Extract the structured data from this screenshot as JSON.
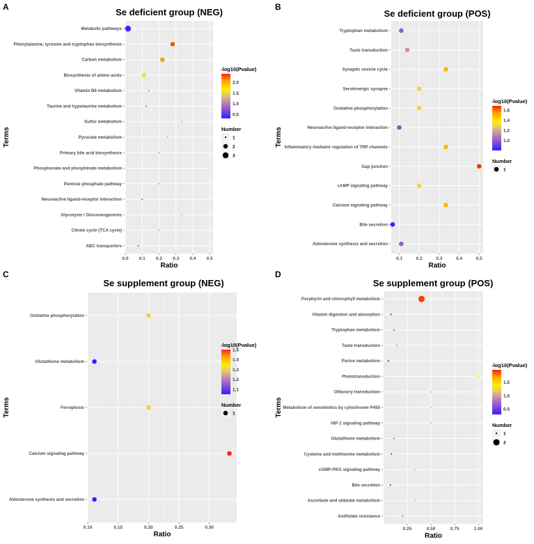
{
  "chart_data": [
    {
      "type": "scatter",
      "panel_label": "A",
      "title": "Se deficient group (NEG)",
      "xlabel": "Ratio",
      "ylabel": "Terms",
      "xlim": [
        0,
        0.52
      ],
      "xticks": [
        0.0,
        0.1,
        0.2,
        0.3,
        0.4,
        0.5
      ],
      "xtick_labels": [
        "0.0",
        "0.1",
        "0.2",
        "0.3",
        "0.4",
        "0.5"
      ],
      "color_title": "-log10(Pvalue)",
      "color_range": [
        0.3,
        2.4
      ],
      "color_ticks": [
        "0.5",
        "1.0",
        "1.5",
        "2.0"
      ],
      "color_tick_values": [
        0.5,
        1.0,
        1.5,
        2.0
      ],
      "size_title": "Number",
      "size_levels": [
        "1",
        "2",
        "3"
      ],
      "terms": [
        "Metabolic pathways",
        "Phenylalanine, tyrosine and tryptophan biosynthesis",
        "Carbon metabolism",
        "Biosynthesis of amino acids",
        "Vitamin B6 metabolism",
        "Taurine and hypotaurine metabolism",
        "Sulfur metabolism",
        "Pyruvate metabolism",
        "Primary bile acid biosynthesis",
        "Phosphonate and phosphinate metabolism",
        "Pentose phosphate pathway",
        "Neuroactive ligand-receptor interaction",
        "Glycolysis / Gluconeogenesis",
        "Citrate cycle (TCA cycle)",
        "ABC transporters"
      ],
      "ratio": [
        0.016,
        0.28,
        0.22,
        0.11,
        0.14,
        0.125,
        0.333,
        0.25,
        0.2,
        0.5,
        0.2,
        0.1,
        0.333,
        0.2,
        0.077
      ],
      "neglog10p": [
        0.35,
        2.3,
        2.1,
        1.6,
        1.05,
        0.9,
        1.4,
        1.3,
        1.2,
        1.5,
        1.2,
        0.8,
        1.4,
        1.2,
        0.8
      ],
      "number": [
        3,
        2,
        2,
        2,
        1,
        1,
        1,
        1,
        1,
        1,
        1,
        1,
        1,
        1,
        1
      ]
    },
    {
      "type": "scatter",
      "panel_label": "B",
      "title": "Se deficient group (POS)",
      "xlabel": "Ratio",
      "ylabel": "Terms",
      "xlim": [
        0.06,
        0.52
      ],
      "xticks": [
        0.1,
        0.2,
        0.3,
        0.4,
        0.5
      ],
      "xtick_labels": [
        "0.1",
        "0.2",
        "0.3",
        "0.4",
        "0.5"
      ],
      "color_title": "-log10(Pvalue)",
      "color_range": [
        0.8,
        1.68
      ],
      "color_ticks": [
        "1.0",
        "1.2",
        "1.4",
        "1.6"
      ],
      "color_tick_values": [
        1.0,
        1.2,
        1.4,
        1.6
      ],
      "size_title": "Number",
      "size_levels": [
        "1"
      ],
      "terms": [
        "Tryptophan metabolism",
        "Taste transduction",
        "Synaptic vesicle cycle",
        "Serotonergic synapse",
        "Oxidative phosphorylation",
        "Neuroactive ligand-receptor interaction",
        "Inflammatory mediator regulation of TRP channels",
        "Gap junction",
        "cAMP signaling pathway",
        "Calcium signaling pathway",
        "Bile secretion",
        "Aldosterone synthesis and secretion"
      ],
      "ratio": [
        0.11,
        0.14,
        0.333,
        0.2,
        0.2,
        0.1,
        0.333,
        0.5,
        0.2,
        0.333,
        0.067,
        0.11
      ],
      "neglog10p": [
        1.0,
        1.15,
        1.5,
        1.3,
        1.3,
        0.97,
        1.5,
        1.66,
        1.3,
        1.5,
        0.8,
        1.0
      ],
      "number": [
        1,
        1,
        1,
        1,
        1,
        1,
        1,
        1,
        1,
        1,
        1,
        1
      ]
    },
    {
      "type": "scatter",
      "panel_label": "C",
      "title": "Se supplement group (NEG)",
      "xlabel": "Ratio",
      "ylabel": "Terms",
      "xlim": [
        0.1,
        0.345
      ],
      "xticks": [
        0.1,
        0.15,
        0.2,
        0.25,
        0.3
      ],
      "xtick_labels": [
        "0.10",
        "0.15",
        "0.20",
        "0.25",
        "0.30"
      ],
      "color_title": "-log10(Pvalue)",
      "color_range": [
        1.05,
        1.5
      ],
      "color_ticks": [
        "1.1",
        "1.2",
        "1.3",
        "1.4",
        "1.5"
      ],
      "color_tick_values": [
        1.1,
        1.2,
        1.3,
        1.4,
        1.5
      ],
      "size_title": "Number",
      "size_levels": [
        "1"
      ],
      "terms": [
        "Oxidative phosphorylation",
        "Glutathione metabolism",
        "Ferroptosis",
        "Calcium signaling pathway",
        "Aldosterone synthesis and secretion"
      ],
      "ratio": [
        0.2,
        0.111,
        0.2,
        0.333,
        0.111
      ],
      "neglog10p": [
        1.3,
        1.05,
        1.3,
        1.5,
        1.05
      ],
      "number": [
        1,
        1,
        1,
        1,
        1
      ]
    },
    {
      "type": "scatter",
      "panel_label": "D",
      "title": "Se supplement group (POS)",
      "xlabel": "Ratio",
      "ylabel": "Terms",
      "xlim": [
        0.0,
        1.05
      ],
      "xticks": [
        0.25,
        0.5,
        0.75,
        1.0
      ],
      "xtick_labels": [
        "0.25",
        "0.50",
        "0.75",
        "1.00"
      ],
      "color_title": "-log10(Pvalue)",
      "color_range": [
        0.3,
        1.95
      ],
      "color_ticks": [
        "0.5",
        "1.0",
        "1.5"
      ],
      "color_tick_values": [
        0.5,
        1.0,
        1.5
      ],
      "size_title": "Number",
      "size_levels": [
        "1",
        "2"
      ],
      "terms": [
        "Porphyrin and chlorophyll metabolism",
        "Vitamin digestion and absorption",
        "Tryptophan metabolism",
        "Taste transduction",
        "Purine metabolism",
        "Phototransduction",
        "Olfactory transduction",
        "Metabolism of xenobiotics by cytochrome P450",
        "HIF-1 signaling pathway",
        "Glutathione metabolism",
        "Cysteine and methionine metabolism",
        "cGMP-PKG signaling pathway",
        "Bile secretion",
        "Ascorbate and aldarate metabolism",
        "Antifolate resistance"
      ],
      "ratio": [
        0.4,
        0.077,
        0.11,
        0.14,
        0.05,
        1.0,
        0.5,
        0.5,
        0.5,
        0.11,
        0.083,
        0.333,
        0.071,
        0.333,
        0.2
      ],
      "neglog10p": [
        1.9,
        0.4,
        0.6,
        0.9,
        0.3,
        1.4,
        1.15,
        1.15,
        1.15,
        0.6,
        0.5,
        1.2,
        0.4,
        1.2,
        0.9
      ],
      "number": [
        2,
        1,
        1,
        1,
        1,
        1,
        1,
        1,
        1,
        1,
        1,
        1,
        1,
        1,
        1
      ]
    }
  ]
}
